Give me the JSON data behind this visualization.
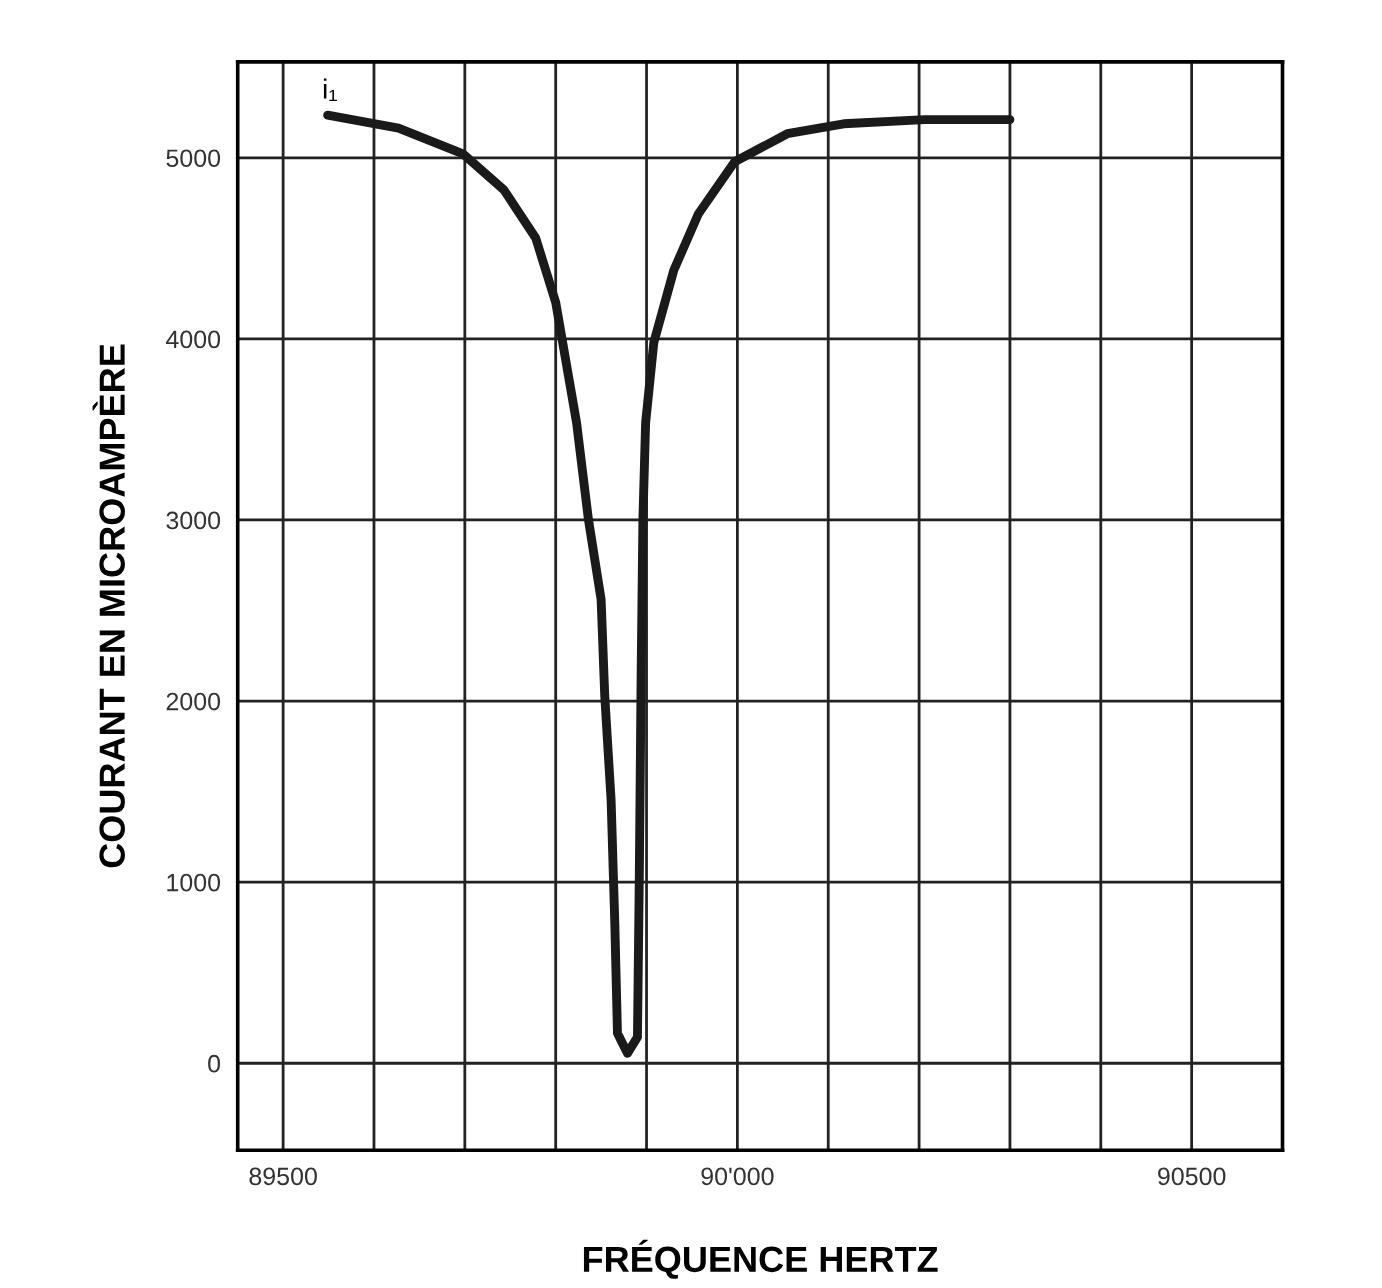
{
  "chart_data": {
    "type": "line",
    "xlabel": "FRÉQUENCE HERTZ",
    "ylabel": "COURANT EN MICROAMPÈRE",
    "annotations": [
      {
        "text": "i₁",
        "x": 89549,
        "y": 5235
      }
    ],
    "x": [
      89549,
      89627,
      89698,
      89743,
      89778,
      89800,
      89823,
      89836,
      89850,
      89854,
      89861,
      89865,
      89868,
      89879,
      89890,
      89892,
      89894,
      89896,
      89899,
      89908,
      89930,
      89957,
      89997,
      90055,
      90117,
      90206,
      90300
    ],
    "series": [
      {
        "color": "#1a1a1a",
        "values": [
          5235,
          5164,
          5022,
          4823,
          4557,
          4202,
          3537,
          3004,
          2561,
          2029,
          1452,
          787,
          166,
          55,
          144,
          1009,
          2118,
          3004,
          3537,
          3980,
          4379,
          4690,
          4978,
          5133,
          5188,
          5211,
          5211
        ]
      }
    ],
    "xlim": [
      89450,
      90600
    ],
    "ylim": [
      -480,
      5530
    ],
    "xticks": [
      89500,
      {
        "value": 89600,
        "label": null
      },
      {
        "value": 89700,
        "label": null
      },
      {
        "value": 89800,
        "label": null
      },
      {
        "value": 89900,
        "label": null
      },
      {
        "value": 90000,
        "label": "90'000"
      },
      {
        "value": 90100,
        "label": null
      },
      {
        "value": 90200,
        "label": null
      },
      {
        "value": 90300,
        "label": null
      },
      {
        "value": 90400,
        "label": null
      },
      90500
    ],
    "yticks": [
      0,
      1000,
      2000,
      3000,
      4000,
      5000
    ],
    "grid": true,
    "legend": false,
    "marker": "none",
    "line_style": "solid"
  }
}
